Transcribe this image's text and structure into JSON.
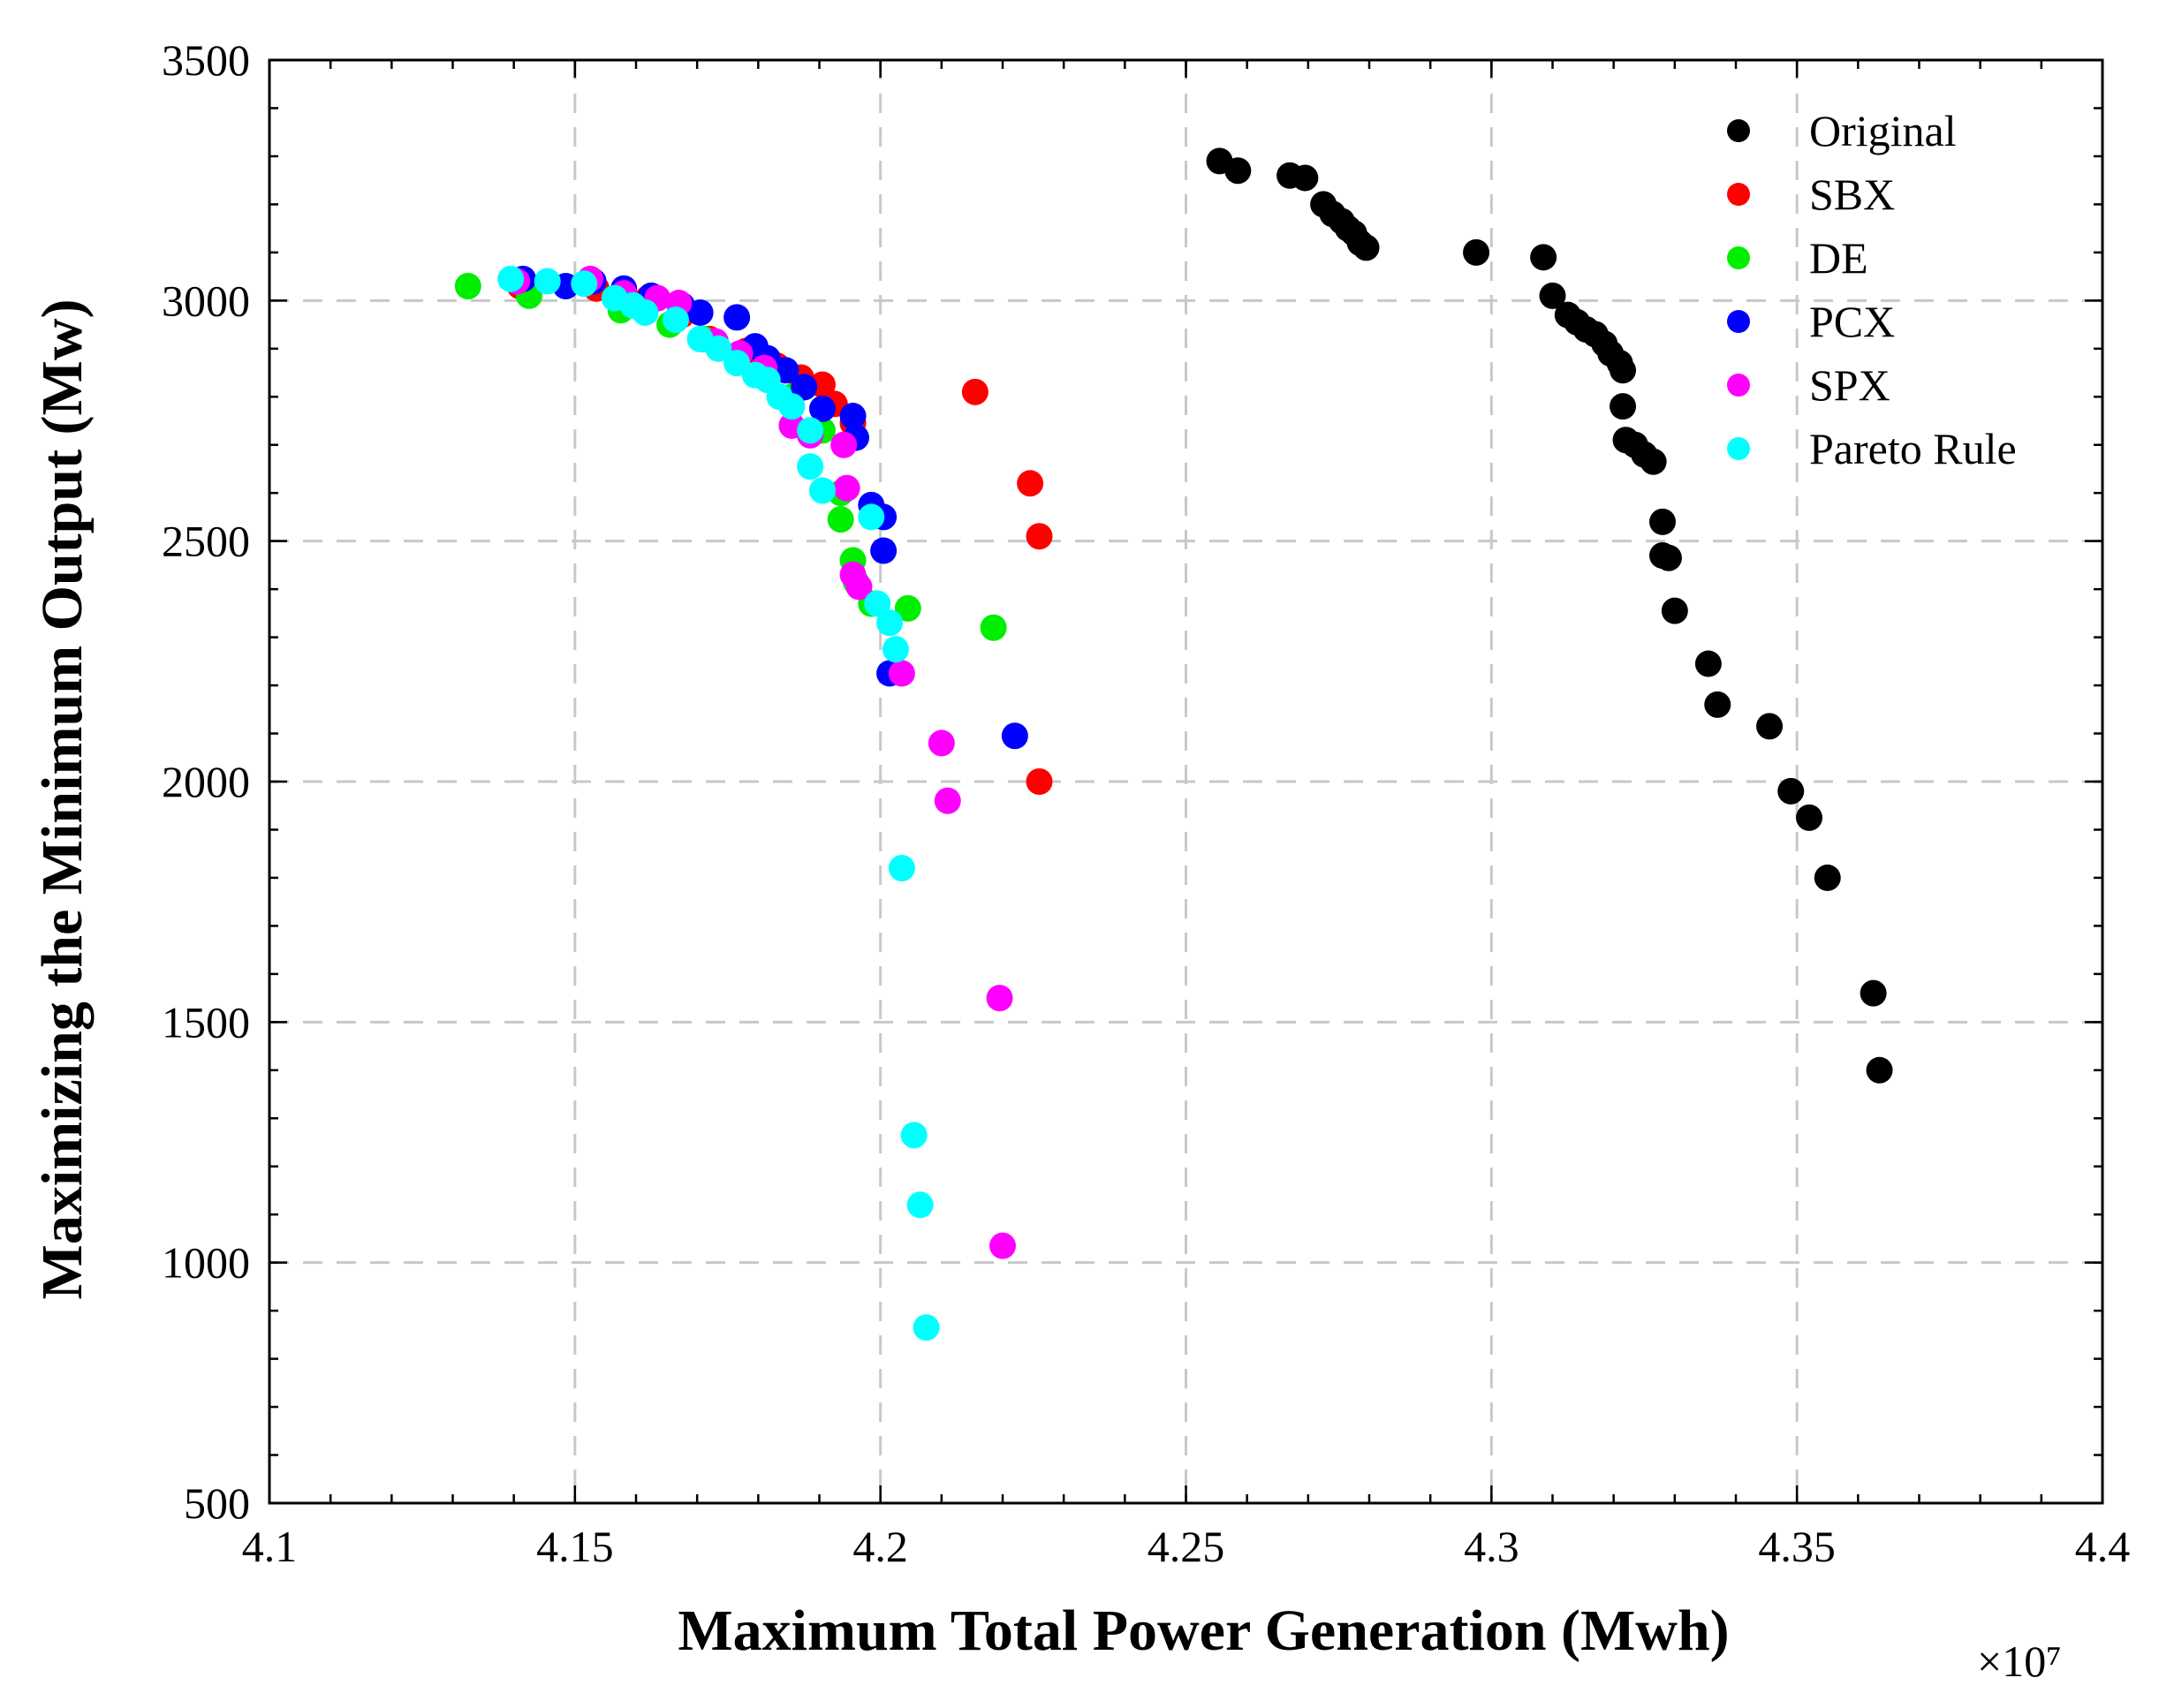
{
  "chart_data": {
    "type": "scatter",
    "title": "",
    "xlabel": "Maximum Total Power Generation (Mwh)",
    "ylabel": "Maximizing the Minimum Output (Mw)",
    "x_multiplier_label": "×10⁷",
    "xlim": [
      4.1,
      4.4
    ],
    "ylim": [
      500,
      3500
    ],
    "xticks": [
      4.1,
      4.15,
      4.2,
      4.25,
      4.3,
      4.35,
      4.4
    ],
    "xtick_labels": [
      "4.1",
      "4.15",
      "4.2",
      "4.25",
      "4.3",
      "4.35",
      "4.4"
    ],
    "yticks": [
      500,
      1000,
      1500,
      2000,
      2500,
      3000,
      3500
    ],
    "ytick_labels": [
      "500",
      "1000",
      "1500",
      "2000",
      "2500",
      "3000",
      "3500"
    ],
    "grid": true,
    "legend_position": "top-right",
    "series": [
      {
        "name": "Original",
        "color": "#000000",
        "points": [
          [
            4.2555,
            3290
          ],
          [
            4.2585,
            3270
          ],
          [
            4.267,
            3260
          ],
          [
            4.2695,
            3255
          ],
          [
            4.2725,
            3200
          ],
          [
            4.274,
            3180
          ],
          [
            4.2755,
            3165
          ],
          [
            4.2765,
            3150
          ],
          [
            4.2775,
            3140
          ],
          [
            4.2785,
            3120
          ],
          [
            4.2795,
            3110
          ],
          [
            4.2975,
            3100
          ],
          [
            4.3085,
            3090
          ],
          [
            4.31,
            3010
          ],
          [
            4.3125,
            2970
          ],
          [
            4.314,
            2955
          ],
          [
            4.3155,
            2940
          ],
          [
            4.317,
            2930
          ],
          [
            4.3185,
            2910
          ],
          [
            4.3195,
            2890
          ],
          [
            4.321,
            2870
          ],
          [
            4.3215,
            2855
          ],
          [
            4.3215,
            2780
          ],
          [
            4.322,
            2710
          ],
          [
            4.3235,
            2700
          ],
          [
            4.325,
            2680
          ],
          [
            4.3265,
            2665
          ],
          [
            4.328,
            2540
          ],
          [
            4.328,
            2470
          ],
          [
            4.329,
            2465
          ],
          [
            4.33,
            2355
          ],
          [
            4.3355,
            2245
          ],
          [
            4.337,
            2160
          ],
          [
            4.3455,
            2115
          ],
          [
            4.349,
            1980
          ],
          [
            4.352,
            1925
          ],
          [
            4.355,
            1800
          ],
          [
            4.3625,
            1560
          ],
          [
            4.3635,
            1400
          ]
        ]
      },
      {
        "name": "SBX",
        "color": "#ff0000",
        "points": [
          [
            4.141,
            3030
          ],
          [
            4.1535,
            3025
          ],
          [
            4.162,
            3005
          ],
          [
            4.1675,
            2970
          ],
          [
            4.172,
            2920
          ],
          [
            4.178,
            2895
          ],
          [
            4.183,
            2865
          ],
          [
            4.187,
            2840
          ],
          [
            4.1905,
            2825
          ],
          [
            4.1925,
            2785
          ],
          [
            4.1955,
            2745
          ],
          [
            4.2155,
            2810
          ],
          [
            4.2245,
            2620
          ],
          [
            4.226,
            2510
          ],
          [
            4.226,
            2000
          ]
        ]
      },
      {
        "name": "DE",
        "color": "#00ee00",
        "points": [
          [
            4.1325,
            3030
          ],
          [
            4.1425,
            3010
          ],
          [
            4.1575,
            2980
          ],
          [
            4.1655,
            2950
          ],
          [
            4.171,
            2920
          ],
          [
            4.1765,
            2880
          ],
          [
            4.1815,
            2840
          ],
          [
            4.1855,
            2800
          ],
          [
            4.1905,
            2730
          ],
          [
            4.1935,
            2600
          ],
          [
            4.1935,
            2545
          ],
          [
            4.1955,
            2460
          ],
          [
            4.196,
            2415
          ],
          [
            4.1985,
            2370
          ],
          [
            4.2045,
            2360
          ],
          [
            4.2185,
            2320
          ]
        ]
      },
      {
        "name": "PCX",
        "color": "#0000ff",
        "points": [
          [
            4.1415,
            3045
          ],
          [
            4.1485,
            3030
          ],
          [
            4.153,
            3040
          ],
          [
            4.158,
            3025
          ],
          [
            4.1625,
            3010
          ],
          [
            4.1675,
            2990
          ],
          [
            4.1705,
            2975
          ],
          [
            4.1765,
            2965
          ],
          [
            4.1795,
            2905
          ],
          [
            4.1815,
            2880
          ],
          [
            4.1845,
            2855
          ],
          [
            4.1875,
            2820
          ],
          [
            4.1905,
            2775
          ],
          [
            4.1955,
            2760
          ],
          [
            4.196,
            2715
          ],
          [
            4.1985,
            2575
          ],
          [
            4.2005,
            2550
          ],
          [
            4.2005,
            2480
          ],
          [
            4.2015,
            2225
          ],
          [
            4.222,
            2095
          ]
        ]
      },
      {
        "name": "SPX",
        "color": "#ff00ff",
        "points": [
          [
            4.1405,
            3040
          ],
          [
            4.1525,
            3045
          ],
          [
            4.158,
            3015
          ],
          [
            4.1635,
            3005
          ],
          [
            4.167,
            2995
          ],
          [
            4.173,
            2915
          ],
          [
            4.177,
            2890
          ],
          [
            4.181,
            2860
          ],
          [
            4.1855,
            2740
          ],
          [
            4.1885,
            2720
          ],
          [
            4.194,
            2700
          ],
          [
            4.1945,
            2610
          ],
          [
            4.1955,
            2430
          ],
          [
            4.1965,
            2405
          ],
          [
            4.2035,
            2225
          ],
          [
            4.21,
            2080
          ],
          [
            4.211,
            1960
          ],
          [
            4.2195,
            1550
          ],
          [
            4.22,
            1035
          ]
        ]
      },
      {
        "name": "Pareto Rule",
        "color": "#00ffff",
        "points": [
          [
            4.1395,
            3045
          ],
          [
            4.1455,
            3040
          ],
          [
            4.1515,
            3035
          ],
          [
            4.1565,
            3005
          ],
          [
            4.1595,
            2990
          ],
          [
            4.1615,
            2975
          ],
          [
            4.1665,
            2960
          ],
          [
            4.1705,
            2920
          ],
          [
            4.1735,
            2900
          ],
          [
            4.1765,
            2870
          ],
          [
            4.1795,
            2845
          ],
          [
            4.1815,
            2835
          ],
          [
            4.1835,
            2800
          ],
          [
            4.1855,
            2780
          ],
          [
            4.1885,
            2730
          ],
          [
            4.1885,
            2655
          ],
          [
            4.1905,
            2605
          ],
          [
            4.1985,
            2550
          ],
          [
            4.1995,
            2370
          ],
          [
            4.2015,
            2330
          ],
          [
            4.2025,
            2275
          ],
          [
            4.2035,
            1820
          ],
          [
            4.2055,
            1265
          ],
          [
            4.2065,
            1120
          ],
          [
            4.2075,
            865
          ]
        ]
      }
    ]
  }
}
